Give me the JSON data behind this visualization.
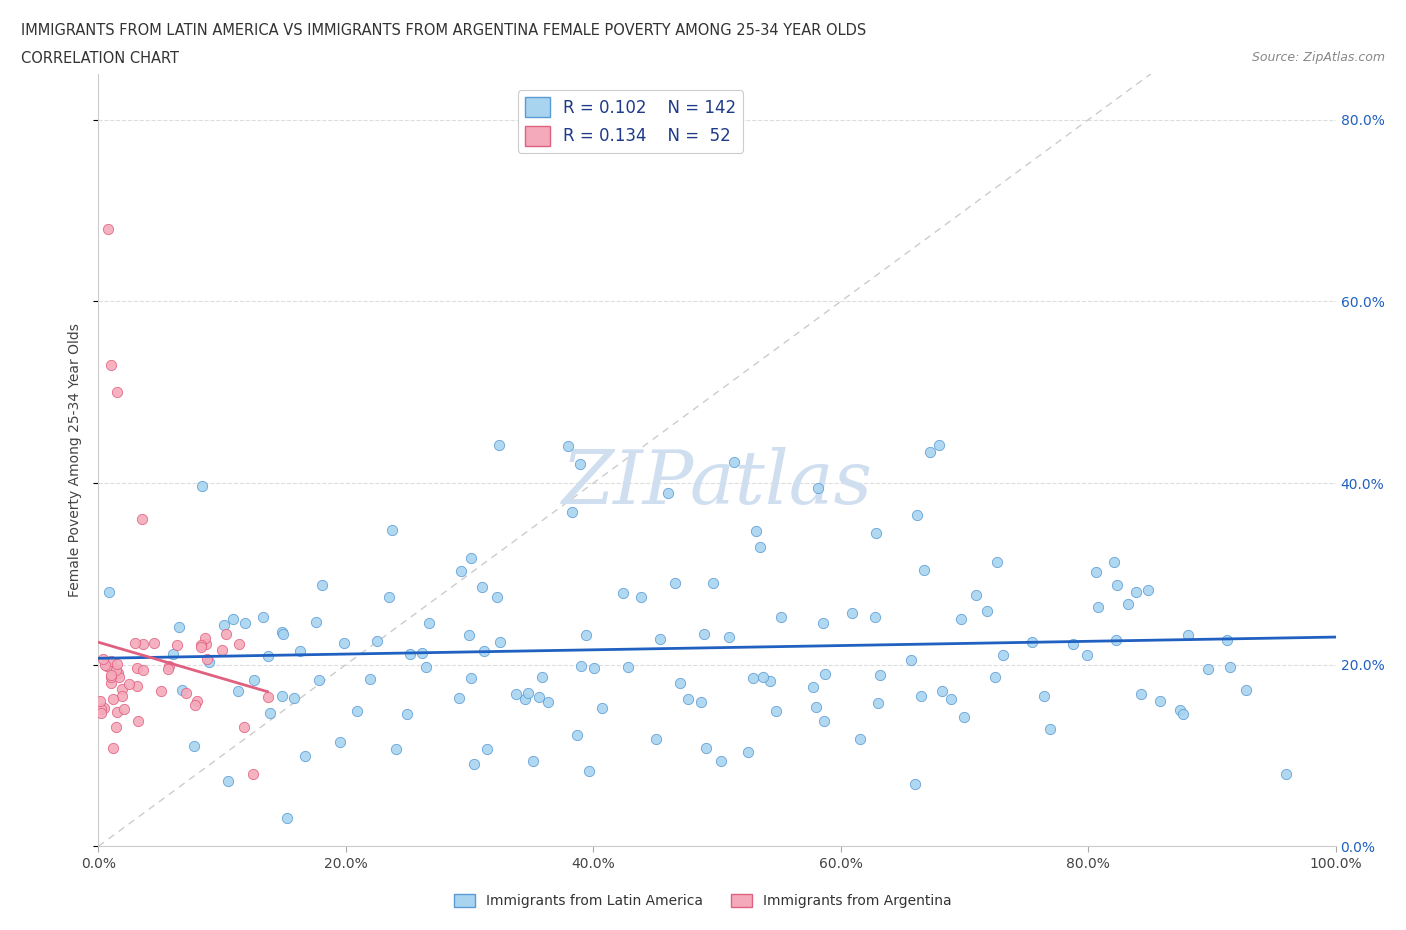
{
  "title_line1": "IMMIGRANTS FROM LATIN AMERICA VS IMMIGRANTS FROM ARGENTINA FEMALE POVERTY AMONG 25-34 YEAR OLDS",
  "title_line2": "CORRELATION CHART",
  "source_text": "Source: ZipAtlas.com",
  "ylabel": "Female Poverty Among 25-34 Year Olds",
  "xlim": [
    0.0,
    1.0
  ],
  "ylim": [
    0.0,
    0.85
  ],
  "x_ticks": [
    0.0,
    0.2,
    0.4,
    0.6,
    0.8,
    1.0
  ],
  "x_tick_labels": [
    "0.0%",
    "20.0%",
    "40.0%",
    "60.0%",
    "80.0%",
    "100.0%"
  ],
  "y_ticks": [
    0.0,
    0.2,
    0.4,
    0.6,
    0.8
  ],
  "y_tick_labels": [
    "0.0%",
    "20.0%",
    "40.0%",
    "60.0%",
    "80.0%"
  ],
  "R_blue": 0.102,
  "N_blue": 142,
  "R_pink": 0.134,
  "N_pink": 52,
  "blue_scatter_color": "#A8D4F0",
  "blue_edge_color": "#5B9BD5",
  "pink_scatter_color": "#F4AABB",
  "pink_edge_color": "#E06080",
  "blue_line_color": "#2060C0",
  "pink_line_color": "#E06080",
  "diagonal_color": "#CCCCCC",
  "legend_text_color": "#1E3A8A",
  "title_color": "#333333",
  "watermark_color": "#D0DFF0",
  "grid_color": "#DDDDDD",
  "background_color": "#FFFFFF",
  "right_tick_color": "#2060C0"
}
